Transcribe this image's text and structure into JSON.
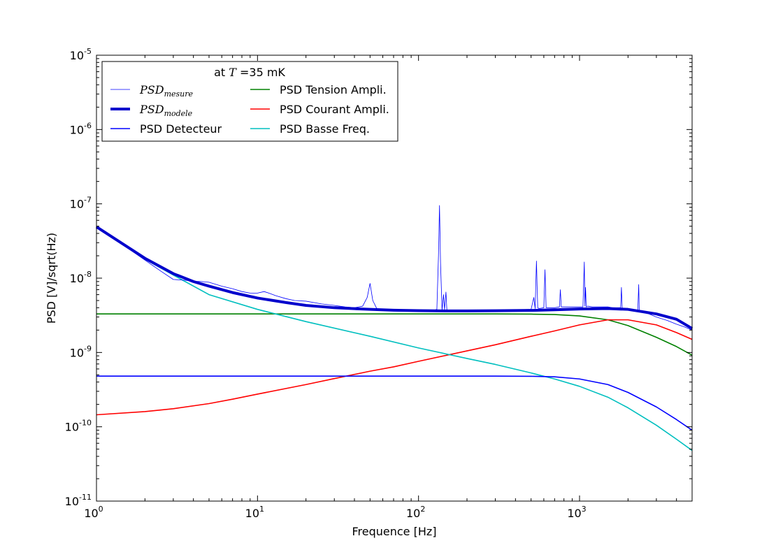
{
  "chart_data": {
    "type": "line",
    "xscale": "log",
    "yscale": "log",
    "xlabel": "Frequence [Hz]",
    "ylabel": "PSD [V]/sqrt(Hz)",
    "xlim": [
      1,
      5000
    ],
    "ylim": [
      1e-11,
      1e-05
    ],
    "x_ticks": [
      {
        "value": 1,
        "base": "10",
        "exp": "0"
      },
      {
        "value": 10,
        "base": "10",
        "exp": "1"
      },
      {
        "value": 100,
        "base": "10",
        "exp": "2"
      },
      {
        "value": 1000,
        "base": "10",
        "exp": "3"
      }
    ],
    "y_ticks": [
      {
        "value": 1e-11,
        "base": "10",
        "exp": "-11"
      },
      {
        "value": 1e-10,
        "base": "10",
        "exp": "-10"
      },
      {
        "value": 1e-09,
        "base": "10",
        "exp": "-9"
      },
      {
        "value": 1e-08,
        "base": "10",
        "exp": "-8"
      },
      {
        "value": 1e-07,
        "base": "10",
        "exp": "-7"
      },
      {
        "value": 1e-06,
        "base": "10",
        "exp": "-6"
      },
      {
        "value": 1e-05,
        "base": "10",
        "exp": "-5"
      }
    ],
    "legend": {
      "title_prefix": "at ",
      "title_var": "T",
      "title_suffix": " =35 mK",
      "placement": "upper-left"
    },
    "series": [
      {
        "key": "mesure",
        "name_main": "PSD",
        "name_sub": "mesure",
        "color": "#0000ff",
        "style": "thin",
        "x": [
          1,
          1.5,
          2,
          2.5,
          3,
          3.5,
          4,
          4.5,
          5,
          6,
          7,
          8,
          9,
          10,
          11,
          12,
          13,
          15,
          17,
          20,
          25,
          30,
          35,
          40,
          45,
          48,
          50,
          52,
          55,
          60,
          70,
          80,
          100,
          120,
          130,
          133,
          135,
          137,
          140,
          143,
          145,
          148,
          150,
          153,
          160,
          200,
          250,
          300,
          400,
          500,
          520,
          530,
          540,
          550,
          560,
          600,
          610,
          620,
          700,
          750,
          760,
          770,
          800,
          900,
          1000,
          1050,
          1070,
          1080,
          1090,
          1100,
          1120,
          1200,
          1400,
          1500,
          1600,
          1700,
          1800,
          1820,
          1840,
          2000,
          2300,
          2330,
          2350,
          2400,
          2700,
          3000,
          3500,
          4000,
          4500,
          5000
        ],
        "y": [
          4.8e-08,
          2.7e-08,
          1.75e-08,
          1.25e-08,
          9.6e-09,
          9.4e-09,
          9.1e-09,
          9e-09,
          8.8e-09,
          7.8e-09,
          7.2e-09,
          6.6e-09,
          6.3e-09,
          6.3e-09,
          6.6e-09,
          6.2e-09,
          5.8e-09,
          5.3e-09,
          5e-09,
          4.9e-09,
          4.5e-09,
          4.3e-09,
          4.1e-09,
          4e-09,
          4.2e-09,
          5.5e-09,
          8.5e-09,
          5e-09,
          3.9e-09,
          3.8e-09,
          3.8e-09,
          3.7e-09,
          3.7e-09,
          3.6e-09,
          3.8e-09,
          2e-08,
          9.5e-08,
          1.6e-08,
          3.7e-09,
          6e-09,
          3.8e-09,
          6.5e-09,
          3.7e-09,
          3.6e-09,
          3.6e-09,
          3.6e-09,
          3.65e-09,
          3.7e-09,
          3.75e-09,
          3.8e-09,
          5.5e-09,
          3.9e-09,
          1.7e-08,
          4e-09,
          3.9e-09,
          4e-09,
          1.3e-08,
          4e-09,
          4e-09,
          4.1e-09,
          7e-09,
          4.1e-09,
          4.1e-09,
          4.1e-09,
          4.1e-09,
          4.1e-09,
          1.65e-08,
          4.2e-09,
          7.5e-09,
          4.1e-09,
          4.2e-09,
          4.1e-09,
          4.1e-09,
          4.1e-09,
          4e-09,
          4e-09,
          4e-09,
          7.5e-09,
          3.9e-09,
          3.8e-09,
          3.7e-09,
          8.2e-09,
          3.6e-09,
          3.5e-09,
          3.3e-09,
          3e-09,
          2.7e-09,
          2.4e-09,
          2.2e-09,
          2e-09
        ]
      },
      {
        "key": "modele",
        "name_main": "PSD",
        "name_sub": "modele",
        "color": "#0000cc",
        "style": "thick",
        "x": [
          1,
          2,
          3,
          4,
          5,
          7,
          10,
          15,
          20,
          30,
          50,
          70,
          100,
          150,
          200,
          300,
          500,
          700,
          1000,
          1500,
          2000,
          3000,
          4000,
          5000
        ],
        "y": [
          4.9e-08,
          1.85e-08,
          1.15e-08,
          9e-09,
          7.8e-09,
          6.4e-09,
          5.4e-09,
          4.7e-09,
          4.3e-09,
          4e-09,
          3.8e-09,
          3.7e-09,
          3.65e-09,
          3.62e-09,
          3.62e-09,
          3.64e-09,
          3.68e-09,
          3.75e-09,
          3.85e-09,
          3.9e-09,
          3.8e-09,
          3.3e-09,
          2.8e-09,
          2.1e-09
        ]
      },
      {
        "key": "detecteur",
        "name": "PSD Detecteur",
        "color": "#0000ff",
        "style": "normal",
        "x": [
          1,
          10,
          100,
          300,
          500,
          700,
          1000,
          1500,
          2000,
          3000,
          4000,
          5000
        ],
        "y": [
          4.8e-10,
          4.8e-10,
          4.8e-10,
          4.8e-10,
          4.78e-10,
          4.7e-10,
          4.4e-10,
          3.7e-10,
          2.9e-10,
          1.85e-10,
          1.25e-10,
          9e-11
        ]
      },
      {
        "key": "tension",
        "name": "PSD Tension Ampli.",
        "color": "#008000",
        "style": "normal",
        "x": [
          1,
          10,
          100,
          300,
          500,
          700,
          1000,
          1500,
          2000,
          3000,
          4000,
          5000
        ],
        "y": [
          3.3e-09,
          3.3e-09,
          3.3e-09,
          3.3e-09,
          3.28e-09,
          3.24e-09,
          3.1e-09,
          2.75e-09,
          2.3e-09,
          1.6e-09,
          1.2e-09,
          9.2e-10
        ]
      },
      {
        "key": "courant",
        "name": "PSD Courant Ampli.",
        "color": "#ff0000",
        "style": "normal",
        "x": [
          1,
          2,
          3,
          5,
          7,
          10,
          20,
          30,
          50,
          70,
          100,
          200,
          300,
          500,
          700,
          1000,
          1500,
          2000,
          3000,
          4000,
          5000
        ],
        "y": [
          1.45e-10,
          1.6e-10,
          1.75e-10,
          2.05e-10,
          2.35e-10,
          2.75e-10,
          3.7e-10,
          4.45e-10,
          5.6e-10,
          6.4e-10,
          7.6e-10,
          1.05e-09,
          1.27e-09,
          1.65e-09,
          1.95e-09,
          2.35e-09,
          2.75e-09,
          2.75e-09,
          2.35e-09,
          1.85e-09,
          1.5e-09
        ]
      },
      {
        "key": "basse",
        "name": "PSD Basse Freq.",
        "color": "#00bfbf",
        "style": "normal",
        "x": [
          1,
          2,
          3,
          5,
          10,
          20,
          50,
          100,
          200,
          300,
          500,
          700,
          1000,
          1500,
          2000,
          3000,
          4000,
          5000
        ],
        "y": [
          4.9e-08,
          1.8e-08,
          1.1e-08,
          6e-09,
          3.8e-09,
          2.6e-09,
          1.65e-09,
          1.15e-09,
          8.3e-10,
          6.9e-10,
          5.3e-10,
          4.4e-10,
          3.5e-10,
          2.5e-10,
          1.8e-10,
          1.05e-10,
          6.8e-11,
          4.8e-11
        ]
      }
    ]
  }
}
